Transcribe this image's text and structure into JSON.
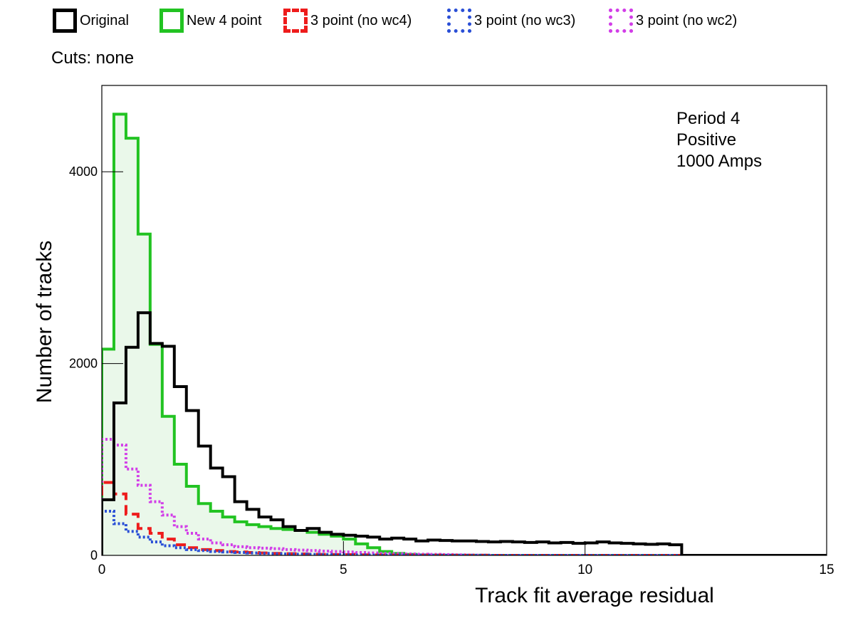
{
  "legend": [
    {
      "label": "Original",
      "color": "#000000",
      "style": "solid"
    },
    {
      "label": "New 4 point",
      "color": "#22c322",
      "style": "solid"
    },
    {
      "label": "3 point (no wc4)",
      "color": "#ee1c1c",
      "style": "dashed"
    },
    {
      "label": "3 point (no wc3)",
      "color": "#2a4fd6",
      "style": "dotted"
    },
    {
      "label": "3 point (no wc2)",
      "color": "#d23ee8",
      "style": "dotted"
    }
  ],
  "cuts_label": "Cuts: none",
  "annotation": [
    "Period 4",
    "Positive",
    "1000 Amps"
  ],
  "chart_data": {
    "type": "histogram",
    "xlabel": "Track fit average residual",
    "ylabel": "Number of tracks",
    "xlim": [
      0,
      15
    ],
    "ylim": [
      0,
      4900
    ],
    "x_ticks": [
      0,
      5,
      10,
      15
    ],
    "y_ticks": [
      0,
      2000,
      4000
    ],
    "bin_width": 0.25,
    "grid": false,
    "series": [
      {
        "name": "Original",
        "color": "#000000",
        "style": "solid",
        "fill": false,
        "values": [
          580,
          1590,
          2170,
          2530,
          2210,
          2180,
          1760,
          1510,
          1140,
          910,
          820,
          560,
          480,
          400,
          370,
          300,
          260,
          280,
          240,
          220,
          210,
          200,
          190,
          170,
          180,
          170,
          150,
          160,
          155,
          150,
          150,
          145,
          140,
          145,
          140,
          135,
          140,
          130,
          135,
          125,
          130,
          140,
          130,
          125,
          120,
          115,
          120,
          110
        ]
      },
      {
        "name": "New 4 point",
        "color": "#22c322",
        "style": "solid",
        "fill": true,
        "fillColor": "#eaf8ea",
        "values": [
          2150,
          4600,
          4350,
          3350,
          2200,
          1450,
          950,
          720,
          540,
          460,
          400,
          350,
          320,
          300,
          280,
          270,
          260,
          240,
          220,
          200,
          170,
          120,
          80,
          40,
          20,
          10,
          5,
          3,
          2,
          2,
          1,
          1
        ]
      },
      {
        "name": "3 point (no wc4)",
        "color": "#ee1c1c",
        "style": "dashed",
        "fill": false,
        "values": [
          760,
          640,
          430,
          280,
          230,
          170,
          110,
          80,
          60,
          50,
          40,
          35,
          30,
          25,
          20,
          18,
          15,
          12,
          10,
          8,
          7,
          6,
          5,
          4,
          3,
          3,
          2,
          2,
          1,
          1,
          1,
          1
        ]
      },
      {
        "name": "3 point (no wc3)",
        "color": "#2a4fd6",
        "style": "dotted",
        "fill": false,
        "values": [
          460,
          330,
          250,
          190,
          140,
          100,
          80,
          60,
          50,
          40,
          35,
          30,
          25,
          20,
          18,
          15,
          12,
          10,
          8,
          7,
          6,
          5,
          4,
          3,
          3,
          2,
          2,
          1,
          1,
          1,
          1,
          1
        ]
      },
      {
        "name": "3 point (no wc2)",
        "color": "#d23ee8",
        "style": "dotted",
        "fill": false,
        "values": [
          1210,
          1150,
          900,
          730,
          560,
          420,
          300,
          230,
          170,
          130,
          110,
          90,
          80,
          75,
          70,
          60,
          55,
          50,
          45,
          40,
          35,
          30,
          25,
          20,
          18,
          15,
          12,
          10,
          8,
          6,
          4,
          2
        ]
      }
    ]
  }
}
